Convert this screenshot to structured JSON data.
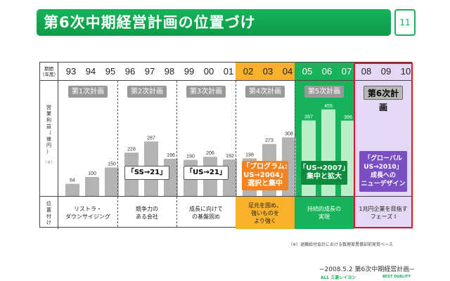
{
  "header": {
    "title": "第6次中期経営計画の位置づけ",
    "page_number": "11"
  },
  "table": {
    "period_label": "期間\n（年度）",
    "profit_label": "営\n業\n利\n益\n（\n億\n円\n）",
    "profit_sub": "（※）",
    "position_label": "位\n置\n付\nけ",
    "plans": [
      {
        "name": "第1次計画",
        "years": [
          "93",
          "94",
          "95"
        ],
        "values": [
          64,
          100,
          150
        ],
        "note": "リストラ・\nダウンサイジング",
        "callout": ""
      },
      {
        "name": "第2次計画",
        "years": [
          "96",
          "97",
          "98"
        ],
        "values": [
          228,
          287,
          196
        ],
        "note": "競争力の\nある会社",
        "callout": "「SS→21」"
      },
      {
        "name": "第3次計画",
        "years": [
          "99",
          "00",
          "01"
        ],
        "values": [
          190,
          206,
          192
        ],
        "note": "成長に向けて\nの基盤固め",
        "callout": "「US→21」"
      },
      {
        "name": "第4次計画",
        "years": [
          "02",
          "03",
          "04"
        ],
        "values": [
          198,
          273,
          308
        ],
        "note": "足元を固め、\n強いものを\nより強く",
        "callout": "「プログラム:\nUS→2004」\n選択と集中"
      },
      {
        "name": "第5次計画",
        "years": [
          "05",
          "06",
          "07"
        ],
        "values": [
          397,
          455,
          396
        ],
        "note": "持続的成長の\n実現",
        "callout": "「US→2007」\n集中と拡大"
      },
      {
        "name": "第6次計画",
        "years": [
          "08",
          "09",
          "10"
        ],
        "values": [],
        "note": "1兆円企業を目指す\nフェーズ Ⅰ",
        "callout": "「グローバル\nUS→2010」\n成長への\nニューデザイン"
      }
    ]
  },
  "chart_data": {
    "type": "bar",
    "title": "",
    "xlabel": "期間（年度）",
    "ylabel": "営業利益（億円）",
    "categories": [
      "93",
      "94",
      "95",
      "96",
      "97",
      "98",
      "99",
      "00",
      "01",
      "02",
      "03",
      "04",
      "05",
      "06",
      "07"
    ],
    "values": [
      64,
      100,
      150,
      228,
      287,
      196,
      190,
      206,
      192,
      198,
      273,
      308,
      397,
      455,
      396
    ],
    "ylim": [
      0,
      480
    ]
  },
  "colors": {
    "brand_green": "#16b35a",
    "bar_gray": "#b3b3b3",
    "plan4_bg": "#f7b12b",
    "plan4_callout": "#f58220",
    "plan5_callout": "#0f8a3e",
    "plan5_bars": "#b9efc8",
    "plan6_bg": "#e4d8f4",
    "plan6_callout": "#7a4fc4",
    "plan6_border": "#e0112b",
    "plan6_callout_red": "#ff2a2a"
  },
  "footnote": "（※）退職給付会計における数理差異償却前実質ベース",
  "footer": {
    "text": "−2008.5.2 第6次中期経営計画−",
    "logo_left": "ALL 三菱レイヨン",
    "logo_right": "BEST QUALITY"
  }
}
